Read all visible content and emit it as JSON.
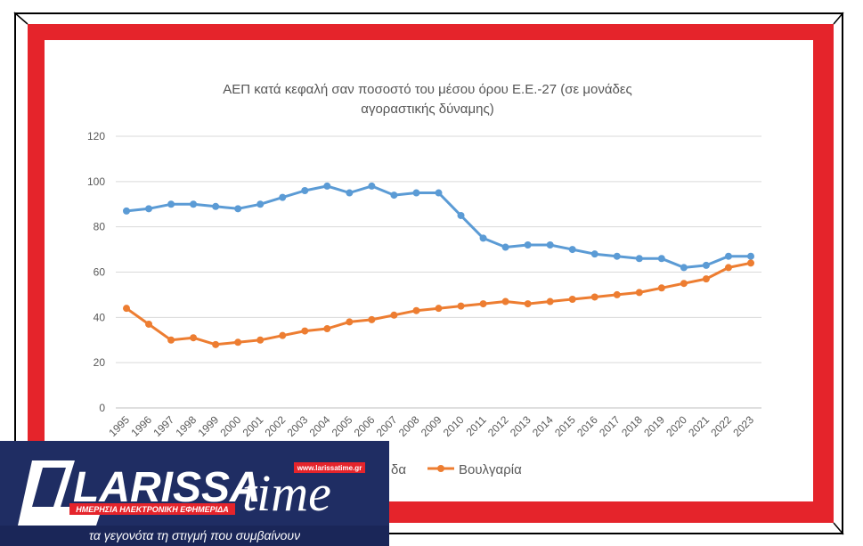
{
  "chart_data": {
    "type": "line",
    "title": "ΑΕΠ κατά κεφαλή σαν ποσοστό του μέσου όρου Ε.Ε.-27 (σε μονάδες αγοραστικής δύναμης)",
    "title_lines": [
      "ΑΕΠ κατά κεφαλή σαν ποσοστό του μέσου όρου Ε.Ε.-27 (σε μονάδες",
      "αγοραστικής δύναμης)"
    ],
    "x": [
      "1995",
      "1996",
      "1997",
      "1998",
      "1999",
      "2000",
      "2001",
      "2002",
      "2003",
      "2004",
      "2005",
      "2006",
      "2007",
      "2008",
      "2009",
      "2010",
      "2011",
      "2012",
      "2013",
      "2014",
      "2015",
      "2016",
      "2017",
      "2018",
      "2019",
      "2020",
      "2021",
      "2022",
      "2023"
    ],
    "series": [
      {
        "name": "Ελλάδα",
        "color": "#5b9bd5",
        "values": [
          87,
          88,
          90,
          90,
          89,
          88,
          90,
          93,
          96,
          98,
          95,
          98,
          94,
          95,
          95,
          85,
          75,
          71,
          72,
          72,
          70,
          68,
          67,
          66,
          66,
          62,
          63,
          67,
          67
        ]
      },
      {
        "name": "Βουλγαρία",
        "color": "#ed7d31",
        "values": [
          44,
          37,
          30,
          31,
          28,
          29,
          30,
          32,
          34,
          35,
          38,
          39,
          41,
          43,
          44,
          45,
          46,
          47,
          46,
          47,
          48,
          49,
          50,
          51,
          53,
          55,
          57,
          62,
          64
        ]
      }
    ],
    "ylim": [
      0,
      120
    ],
    "yticks": [
      0,
      20,
      40,
      60,
      80,
      100,
      120
    ],
    "grid": true,
    "legend_position": "bottom",
    "legend_visible": [
      "δα",
      "Βουλγαρία"
    ]
  },
  "logo": {
    "brand_main": "LARISSA",
    "brand_script": "time",
    "url": "www.larissatime.gr",
    "subtitle": "ΗΜΕΡΗΣΙΑ ΗΛΕΚΤΡΟΝΙΚΗ ΕΦΗΜΕΡΙΔΑ",
    "tagline": "τα γεγονότα τη στιγμή που συμβαίνουν"
  },
  "colors": {
    "frame_red": "#e5242b",
    "logo_navy": "#1f2d63",
    "logo_red": "#e5242b"
  }
}
